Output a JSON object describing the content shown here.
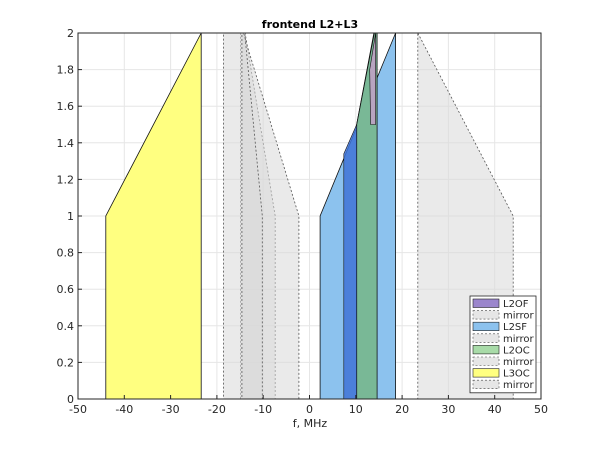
{
  "chart_data": {
    "type": "area",
    "title": "frontend L2+L3",
    "xlabel": "f, MHz",
    "ylabel": "",
    "xlim": [
      -50,
      50
    ],
    "ylim": [
      0,
      2
    ],
    "xticks": [
      -50,
      -40,
      -30,
      -20,
      -10,
      0,
      10,
      20,
      30,
      40,
      50
    ],
    "yticks": [
      0,
      0.2,
      0.4,
      0.6,
      0.8,
      1,
      1.2,
      1.4,
      1.6,
      1.8,
      2
    ],
    "grid": true,
    "legend_position": "bottom-right",
    "series": [
      {
        "name": "mirror",
        "kind": "mirror",
        "color": "#d9d9d9",
        "points": [
          [
            -14.9,
            2
          ],
          [
            -13.9,
            2
          ],
          [
            -7.4,
            1
          ],
          [
            -7.4,
            0
          ],
          [
            -14.9,
            0
          ],
          [
            -14.9,
            1
          ]
        ]
      },
      {
        "name": "mirror",
        "kind": "mirror",
        "color": "#d9d9d9",
        "points": [
          [
            -18.6,
            2
          ],
          [
            -14.3,
            2
          ],
          [
            -2.3,
            1
          ],
          [
            -2.3,
            0
          ],
          [
            -18.6,
            0
          ],
          [
            -18.6,
            1
          ]
        ]
      },
      {
        "name": "mirror",
        "kind": "mirror",
        "color": "#d9d9d9",
        "points": [
          [
            -14.6,
            2
          ],
          [
            -14.0,
            2
          ],
          [
            -10.2,
            1
          ],
          [
            -10.2,
            0
          ],
          [
            -14.6,
            0
          ],
          [
            -14.6,
            1
          ]
        ]
      },
      {
        "name": "mirror",
        "kind": "mirror",
        "color": "#d9d9d9",
        "points": [
          [
            23.4,
            2
          ],
          [
            44.0,
            1
          ],
          [
            44.0,
            0
          ],
          [
            23.4,
            0
          ]
        ]
      },
      {
        "name": "L2OF",
        "kind": "band",
        "color": "#9b86cc",
        "points": [
          [
            13.9,
            2
          ],
          [
            14.3,
            2
          ],
          [
            14.3,
            1.5
          ],
          [
            10.2,
            1.5
          ]
        ]
      },
      {
        "name": "L2SF",
        "kind": "band",
        "color": "#8cc2ee",
        "points": [
          [
            18.6,
            2
          ],
          [
            18.6,
            0
          ],
          [
            2.3,
            0
          ],
          [
            2.3,
            1
          ]
        ]
      },
      {
        "name": "L2OC",
        "kind": "band",
        "color": "#79b896",
        "points": [
          [
            14.0,
            2
          ],
          [
            14.6,
            2
          ],
          [
            14.6,
            0
          ],
          [
            10.2,
            0
          ],
          [
            10.2,
            1.5
          ]
        ]
      },
      {
        "name": "L3OC",
        "kind": "band",
        "color": "#ffff80",
        "points": [
          [
            -23.4,
            2
          ],
          [
            -23.4,
            0
          ],
          [
            -44.0,
            0
          ],
          [
            -44.0,
            1
          ]
        ]
      },
      {
        "name": "",
        "kind": "overlay",
        "color": "#3f73d6",
        "points": [
          [
            7.4,
            1.34
          ],
          [
            7.4,
            0
          ],
          [
            10.2,
            0
          ],
          [
            10.2,
            1.5
          ]
        ]
      },
      {
        "name": "",
        "kind": "overlay",
        "color": "#c3a0c8",
        "points": [
          [
            13.0,
            1.8
          ],
          [
            14.3,
            2
          ],
          [
            14.3,
            1.5
          ],
          [
            13.2,
            1.5
          ]
        ]
      }
    ],
    "legend": [
      {
        "label": "L2OF",
        "style": "fill",
        "color": "#9b86cc"
      },
      {
        "label": "mirror",
        "style": "dashed",
        "color": "#e6e6e6"
      },
      {
        "label": "L2SF",
        "style": "fill",
        "color": "#8cc2ee"
      },
      {
        "label": "mirror",
        "style": "dashed",
        "color": "#e6e6e6"
      },
      {
        "label": "L2OC",
        "style": "fill",
        "color": "#a8dba8"
      },
      {
        "label": "mirror",
        "style": "dashed",
        "color": "#e6e6e6"
      },
      {
        "label": "L3OC",
        "style": "fill",
        "color": "#ffff80"
      },
      {
        "label": "mirror",
        "style": "dashed",
        "color": "#e6e6e6"
      }
    ]
  }
}
